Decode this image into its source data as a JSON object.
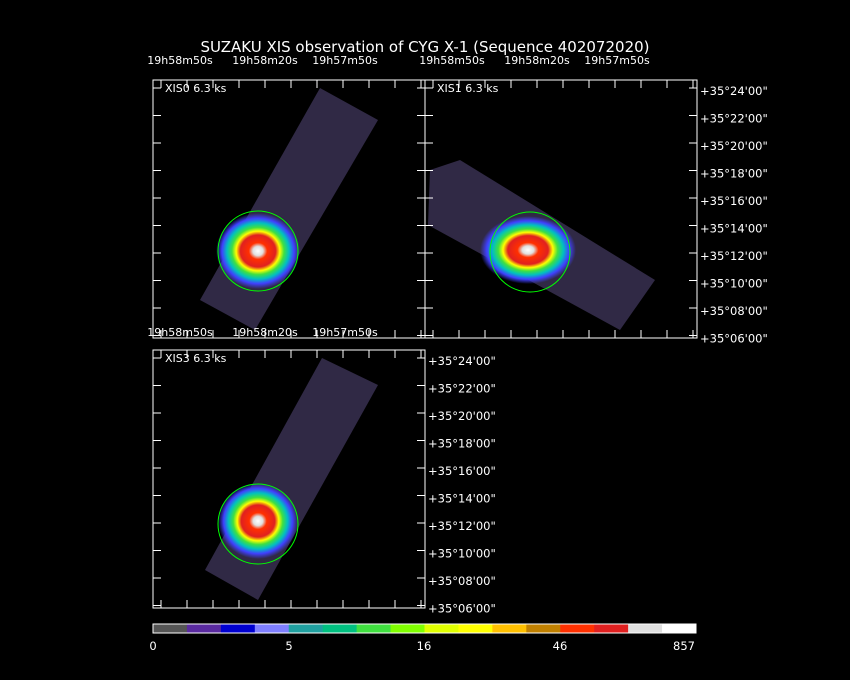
{
  "title": "SUZAKU XIS observation of CYG X-1  (Sequence 402072020)",
  "panels": [
    {
      "label": "XIS0 6.3 ks",
      "orientation": "tilted-up",
      "ra_ticks": [
        "19h58m50s",
        "19h58m20s",
        "19h57m50s"
      ]
    },
    {
      "label": "XIS1 6.3 ks",
      "orientation": "tilted-down",
      "ra_ticks": [
        "19h58m50s",
        "19h58m20s",
        "19h57m50s"
      ]
    },
    {
      "label": "XIS3 6.3 ks",
      "orientation": "tilted-up",
      "ra_ticks": [
        "19h58m50s",
        "19h58m20s",
        "19h57m50s"
      ]
    }
  ],
  "dec_ticks": [
    "+35°24'00\"",
    "+35°22'00\"",
    "+35°20'00\"",
    "+35°18'00\"",
    "+35°16'00\"",
    "+35°14'00\"",
    "+35°12'00\"",
    "+35°10'00\"",
    "+35°08'00\"",
    "+35°06'00\""
  ],
  "colorbar": {
    "colors": [
      "#555555",
      "#5a2aa0",
      "#0000d0",
      "#7f7fff",
      "#20a0a0",
      "#00c080",
      "#40e040",
      "#80ff00",
      "#e0ff00",
      "#ffff00",
      "#ffc000",
      "#c08000",
      "#ff3000",
      "#e02020",
      "#e0e0e0",
      "#ffffff"
    ],
    "labels": [
      "0",
      "5",
      "16",
      "46",
      "857"
    ]
  }
}
